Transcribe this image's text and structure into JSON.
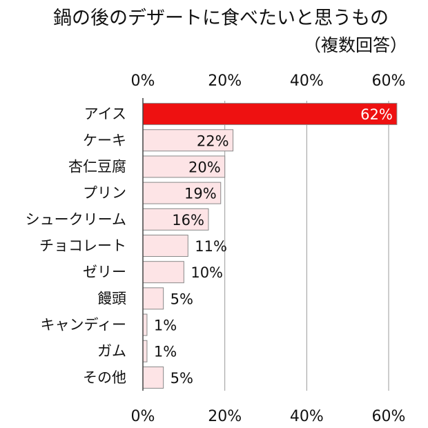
{
  "chart_data": {
    "type": "bar",
    "orientation": "horizontal",
    "title": "鍋の後のデザートに食べたいと思うもの",
    "subtitle": "（複数回答）",
    "categories": [
      "アイス",
      "ケーキ",
      "杏仁豆腐",
      "プリン",
      "シュークリーム",
      "チョコレート",
      "ゼリー",
      "饅頭",
      "キャンディー",
      "ガム",
      "その他"
    ],
    "values": [
      62,
      22,
      20,
      19,
      16,
      11,
      10,
      5,
      1,
      1,
      5
    ],
    "value_labels": [
      "62%",
      "22%",
      "20%",
      "19%",
      "16%",
      "11%",
      "10%",
      "5%",
      "1%",
      "1%",
      "5%"
    ],
    "xlim": [
      0,
      65
    ],
    "xticks": [
      0,
      20,
      40,
      60
    ],
    "xtick_labels": [
      "0%",
      "20%",
      "40%",
      "60%"
    ],
    "grid": true,
    "colors": {
      "highlight": "#ee1111",
      "bar": "#fde4e6",
      "bar_edge": "#888888",
      "grid": "#999999"
    }
  }
}
